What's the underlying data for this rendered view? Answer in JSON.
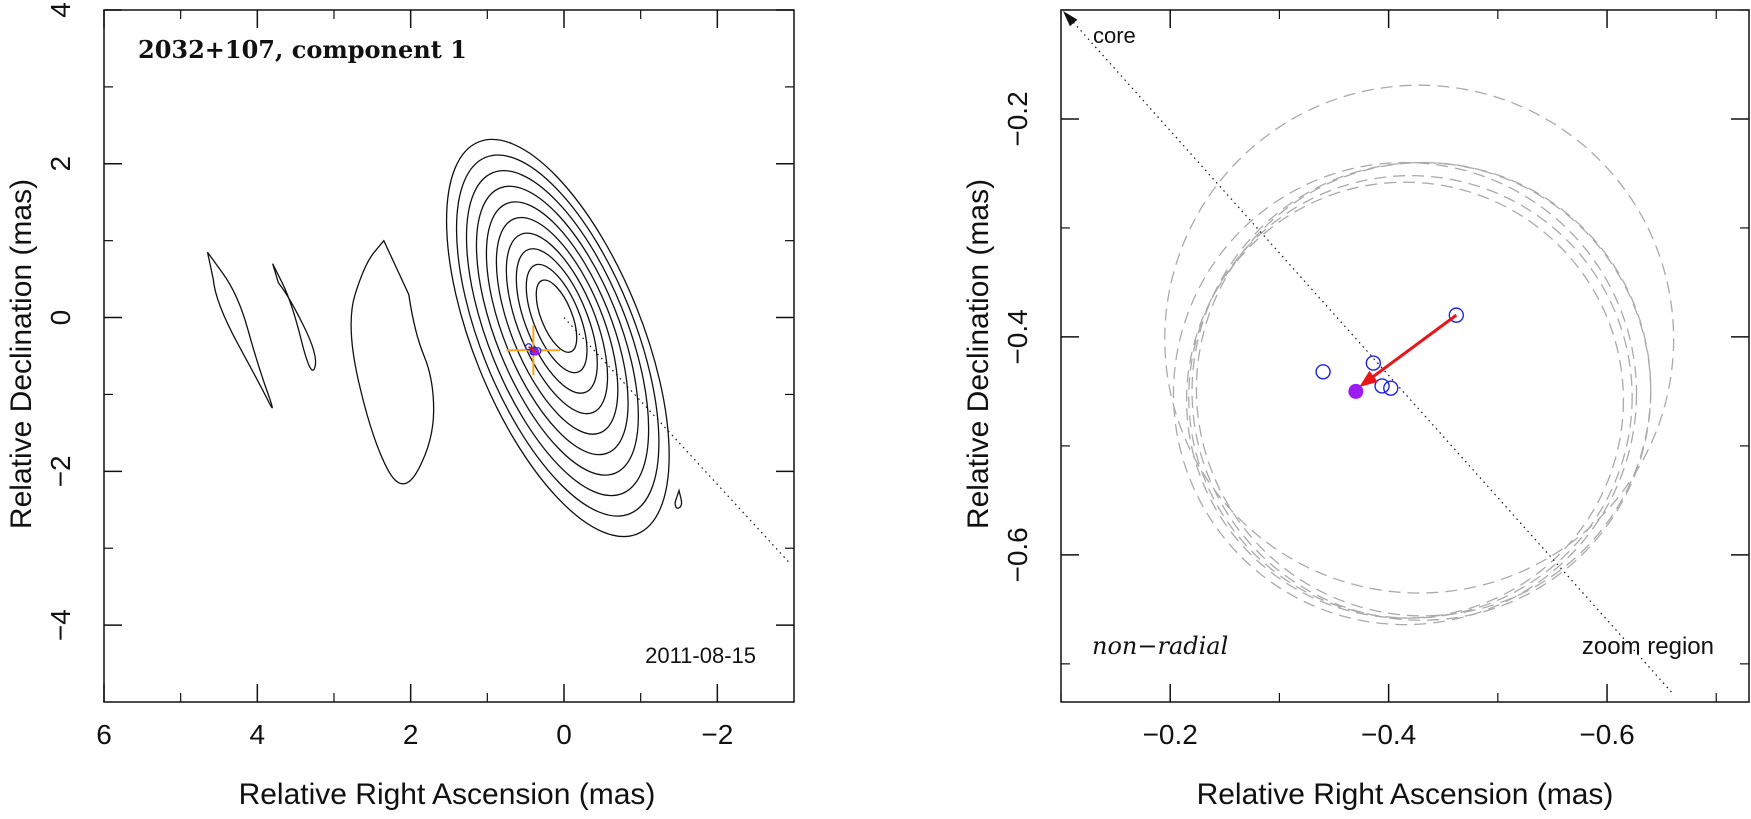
{
  "colors": {
    "frame": "#111111",
    "contour": "#111111",
    "box": "#f5a623",
    "circle": "#1e22e6",
    "arrow": "#e8151b",
    "dot": "#9b1df2",
    "dashed": "#aaaaaa"
  },
  "chart_data": [
    {
      "type": "contour",
      "title": "2032+107, component 1",
      "date": "2011-08-15",
      "xlabel": "Relative Right Ascension (mas)",
      "ylabel": "Relative Declination (mas)",
      "xlim": [
        6,
        -3
      ],
      "ylim": [
        -5,
        4
      ],
      "xticks": [
        6,
        4,
        2,
        0,
        -2
      ],
      "xtick_labels": [
        "6",
        "4",
        "2",
        "0",
        "−2"
      ],
      "yticks": [
        4,
        2,
        0,
        -2,
        -4
      ],
      "ytick_labels": [
        "4",
        "2",
        "0",
        "−2",
        "−4"
      ],
      "contours": {
        "center": [
          0.1,
          0.05
        ],
        "levels_rx": [
          2.2,
          2.0,
          1.8,
          1.6,
          1.4,
          1.2,
          1.0,
          0.8,
          0.6,
          0.4
        ],
        "levels_ry": [
          2.75,
          2.5,
          2.25,
          2.0,
          1.75,
          1.5,
          1.25,
          1.0,
          0.75,
          0.5
        ]
      },
      "islands": [
        [
          [
            4.65,
            0.85
          ],
          [
            4.25,
            0.3
          ],
          [
            4.0,
            -0.6
          ],
          [
            3.75,
            -1.3
          ],
          [
            3.95,
            -0.9
          ],
          [
            4.55,
            0.2
          ],
          [
            4.6,
            0.8
          ]
        ],
        [
          [
            3.8,
            0.7
          ],
          [
            3.55,
            0.2
          ],
          [
            3.3,
            -0.8
          ],
          [
            3.2,
            -0.5
          ],
          [
            3.6,
            0.3
          ],
          [
            3.85,
            0.6
          ]
        ],
        [
          [
            2.35,
            1.0
          ],
          [
            2.6,
            0.7
          ],
          [
            2.85,
            -0.1
          ],
          [
            2.5,
            -1.6
          ],
          [
            2.1,
            -2.35
          ],
          [
            1.7,
            -1.6
          ],
          [
            1.7,
            -0.8
          ],
          [
            1.95,
            -0.2
          ],
          [
            2.1,
            0.8
          ]
        ],
        [
          [
            -1.5,
            -2.25
          ],
          [
            -1.55,
            -2.45
          ],
          [
            -1.45,
            -2.5
          ],
          [
            -1.45,
            -2.3
          ]
        ]
      ],
      "zoom_box": {
        "x": [
          0.05,
          0.75
        ],
        "y": [
          -0.1,
          -0.75
        ]
      },
      "jet_line": {
        "from": [
          0.0,
          0.0
        ],
        "to": [
          -2.95,
          -3.2
        ]
      }
    },
    {
      "type": "scatter",
      "xlabel": "Relative Right Ascension (mas)",
      "ylabel": "Relative Declination (mas)",
      "xlim": [
        -0.1,
        -0.73
      ],
      "ylim": [
        -0.735,
        -0.1
      ],
      "xticks": [
        -0.2,
        -0.4,
        -0.6
      ],
      "xtick_labels": [
        "−0.2",
        "−0.4",
        "−0.6"
      ],
      "yticks": [
        -0.2,
        -0.4,
        -0.6
      ],
      "ytick_labels": [
        "−0.2",
        "−0.4",
        "−0.6"
      ],
      "core_label": "core",
      "mode_label": "non−radial",
      "zoom_label": "zoom region",
      "core_line": {
        "from": [
          -0.1,
          -0.1
        ],
        "to": [
          -0.66,
          -0.727
        ]
      },
      "points": [
        {
          "x": -0.34,
          "y": -0.432
        },
        {
          "x": -0.386,
          "y": -0.424
        },
        {
          "x": -0.394,
          "y": -0.445
        },
        {
          "x": -0.402,
          "y": -0.447
        },
        {
          "x": -0.462,
          "y": -0.38
        }
      ],
      "mean_point": {
        "x": -0.37,
        "y": -0.45
      },
      "motion_arrow": {
        "from": [
          -0.462,
          -0.38
        ],
        "to": [
          -0.373,
          -0.446
        ]
      },
      "error_circles": [
        {
          "x": -0.415,
          "y": -0.452,
          "r": 0.212
        },
        {
          "x": -0.428,
          "y": -0.402,
          "r": 0.233
        },
        {
          "x": -0.415,
          "y": -0.458,
          "r": 0.2
        },
        {
          "x": -0.432,
          "y": -0.448,
          "r": 0.208
        },
        {
          "x": -0.43,
          "y": -0.45,
          "r": 0.21
        },
        {
          "x": -0.42,
          "y": -0.455,
          "r": 0.203
        }
      ]
    }
  ]
}
